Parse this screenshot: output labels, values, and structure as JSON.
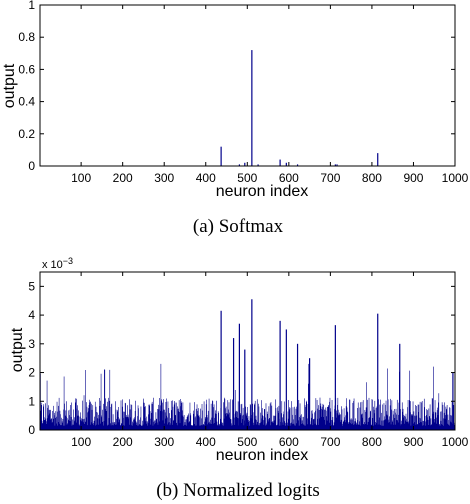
{
  "chart_data": [
    {
      "type": "bar",
      "caption": "(a)  Softmax",
      "xlabel": "neuron index",
      "ylabel": "output",
      "xlim": [
        1,
        1000
      ],
      "ylim": [
        0,
        1
      ],
      "xticks": [
        100,
        200,
        300,
        400,
        500,
        600,
        700,
        800,
        900,
        1000
      ],
      "yticks": [
        0,
        0.2,
        0.4,
        0.6,
        0.8,
        1
      ],
      "ytick_labels": [
        "0",
        "0.2",
        "0.4",
        "0.6",
        "0.8",
        "1"
      ],
      "color": "#00008b",
      "series": [
        {
          "x": [
            437,
            481,
            494,
            511,
            526,
            579,
            594,
            621,
            712,
            716,
            814
          ],
          "values": [
            0.12,
            0.01,
            0.02,
            0.72,
            0.01,
            0.04,
            0.02,
            0.01,
            0.01,
            0.01,
            0.08
          ]
        }
      ]
    },
    {
      "type": "bar",
      "caption": "(b)  Normalized logits",
      "xlabel": "neuron index",
      "ylabel": "output",
      "scale_label_prefix": "x 10",
      "scale_label_exponent": "−3",
      "xlim": [
        1,
        1000
      ],
      "ylim": [
        0,
        5.5
      ],
      "xticks": [
        100,
        200,
        300,
        400,
        500,
        600,
        700,
        800,
        900,
        1000
      ],
      "yticks": [
        0,
        1,
        2,
        3,
        4,
        5
      ],
      "ytick_labels": [
        "0",
        "1",
        "2",
        "3",
        "4",
        "5"
      ],
      "color": "#00008b",
      "baseline_range": [
        0.15,
        1.3
      ],
      "series": [
        {
          "x": [
            437,
            467,
            481,
            494,
            511,
            579,
            594,
            621,
            650,
            712,
            814,
            867,
            995
          ],
          "values": [
            4.15,
            3.2,
            3.7,
            2.8,
            4.55,
            3.8,
            3.5,
            3.0,
            2.5,
            3.65,
            4.05,
            3.0,
            2.0
          ]
        }
      ]
    }
  ]
}
